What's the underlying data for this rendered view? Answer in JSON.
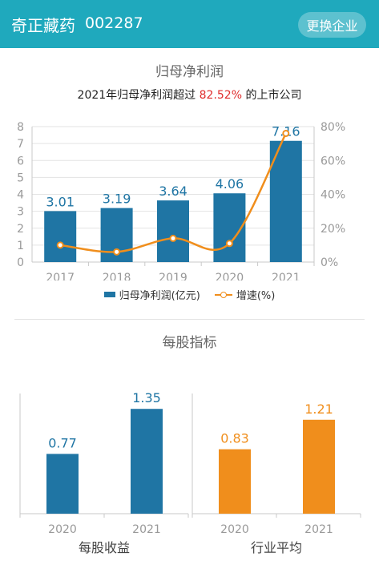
{
  "header": {
    "company_name": "奇正藏药",
    "stock_code": "002287",
    "switch_button": "更换企业"
  },
  "profit_section": {
    "title": "归母净利润",
    "headline_prefix": "2021年归母净利润超过 ",
    "headline_highlight": "82.52%",
    "headline_suffix": " 的上市公司"
  },
  "legend": {
    "bar_label": "归母净利润(亿元)",
    "line_label": "增速(%)"
  },
  "per_share_section": {
    "title": "每股指标",
    "left_label": "每股收益",
    "right_label": "行业平均"
  },
  "colors": {
    "header": "#1fa9bd",
    "bar_blue": "#1f75a4",
    "bar_orange": "#f08e1c",
    "highlight_red": "#e02e2e"
  },
  "chart_data": [
    {
      "type": "bar",
      "categories": [
        "2017",
        "2018",
        "2019",
        "2020",
        "2021"
      ],
      "series": [
        {
          "name": "归母净利润(亿元)",
          "type": "bar",
          "axis": "left",
          "values": [
            3.01,
            3.19,
            3.64,
            4.06,
            7.16
          ]
        },
        {
          "name": "增速(%)",
          "type": "line",
          "axis": "right",
          "values": [
            10,
            6,
            14,
            11,
            76
          ]
        }
      ],
      "left_axis": {
        "ylim": [
          0,
          8
        ],
        "ticks": [
          "0",
          "1",
          "2",
          "3",
          "4",
          "5",
          "6",
          "7",
          "8"
        ]
      },
      "right_axis": {
        "ylim": [
          0,
          80
        ],
        "ticks": [
          "0%",
          "20%",
          "40%",
          "60%",
          "80%"
        ]
      },
      "legend_position": "bottom"
    },
    {
      "type": "bar",
      "title": "每股收益",
      "categories": [
        "2020",
        "2021"
      ],
      "values": [
        0.77,
        1.35
      ],
      "ylim": [
        0,
        1.6
      ]
    },
    {
      "type": "bar",
      "title": "行业平均",
      "categories": [
        "2020",
        "2021"
      ],
      "values": [
        0.83,
        1.21
      ],
      "ylim": [
        0,
        1.6
      ]
    }
  ]
}
